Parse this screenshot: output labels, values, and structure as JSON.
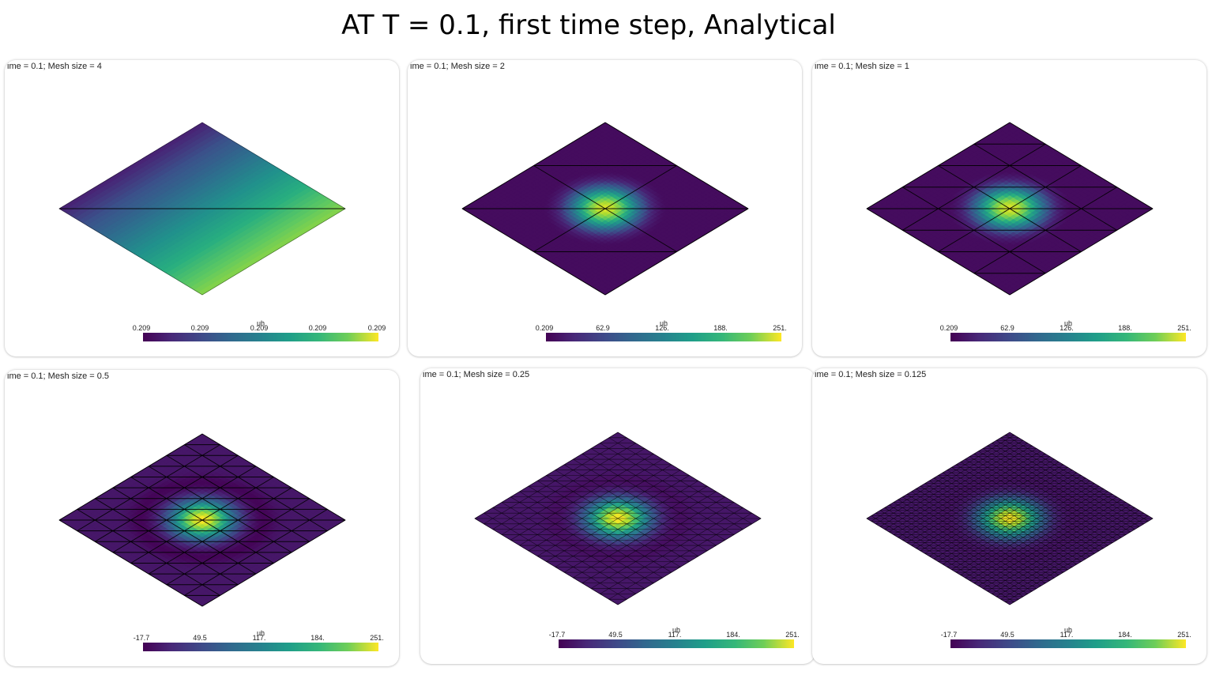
{
  "slide": {
    "title": "AT T = 0.1, first time step, Analytical"
  },
  "colors": {
    "viridis_low": "#440154",
    "viridis_high": "#fde725",
    "mesh_edge": "#000000"
  },
  "panels": [
    {
      "title": "ime = 0.1; Mesh size = 4",
      "mesh_size": 4,
      "colorbar": {
        "name": "uh",
        "ticks": [
          "0.209",
          "0.209",
          "0.209",
          "0.209",
          "0.209"
        ]
      }
    },
    {
      "title": "ime = 0.1; Mesh size = 2",
      "mesh_size": 2,
      "colorbar": {
        "name": "uh",
        "ticks": [
          "0.209",
          "62.9",
          "126.",
          "188.",
          "251."
        ]
      }
    },
    {
      "title": "ime = 0.1; Mesh size = 1",
      "mesh_size": 1,
      "colorbar": {
        "name": "uh",
        "ticks": [
          "0.209",
          "62.9",
          "126.",
          "188.",
          "251."
        ]
      }
    },
    {
      "title": "ime = 0.1; Mesh size = 0.5",
      "mesh_size": 0.5,
      "colorbar": {
        "name": "uh",
        "ticks": [
          "-17.7",
          "49.5",
          "117.",
          "184.",
          "251."
        ]
      }
    },
    {
      "title": "ime = 0.1; Mesh size = 0.25",
      "mesh_size": 0.25,
      "colorbar": {
        "name": "uh",
        "ticks": [
          "-17.7",
          "49.5",
          "117.",
          "184.",
          "251."
        ]
      }
    },
    {
      "title": "ime = 0.1; Mesh size = 0.125",
      "mesh_size": 0.125,
      "colorbar": {
        "name": "uh",
        "ticks": [
          "-17.7",
          "49.5",
          "117.",
          "184.",
          "251."
        ]
      }
    }
  ]
}
